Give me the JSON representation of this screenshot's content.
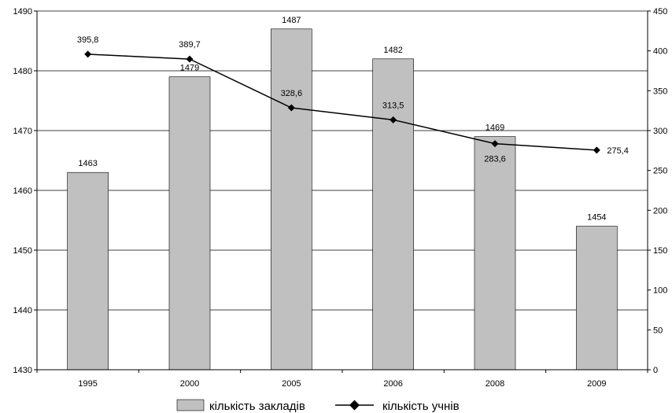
{
  "chart_data": {
    "type": "bar",
    "categories": [
      "1995",
      "2000",
      "2005",
      "2006",
      "2008",
      "2009"
    ],
    "series": [
      {
        "name": "кількість закладів",
        "type": "bar",
        "axis": "left",
        "values": [
          1463,
          1479,
          1487,
          1482,
          1469,
          1454
        ],
        "labels": [
          "1463",
          "1479",
          "1487",
          "1482",
          "1469",
          "1454"
        ],
        "color": "#c0c0c0"
      },
      {
        "name": "кількість учнів",
        "type": "line",
        "axis": "right",
        "values": [
          395.8,
          389.7,
          328.6,
          313.5,
          283.6,
          275.4
        ],
        "labels": [
          "395,8",
          "389,7",
          "328,6",
          "313,5",
          "283,6",
          "275,4"
        ],
        "color": "#000000"
      }
    ],
    "y_left": {
      "lim": [
        1430,
        1490
      ],
      "ticks": [
        1430,
        1440,
        1450,
        1460,
        1470,
        1480,
        1490
      ]
    },
    "y_right": {
      "lim": [
        0,
        450
      ],
      "ticks": [
        0,
        50,
        100,
        150,
        200,
        250,
        300,
        350,
        400,
        450
      ]
    },
    "grid": true,
    "legend": "bottom"
  }
}
